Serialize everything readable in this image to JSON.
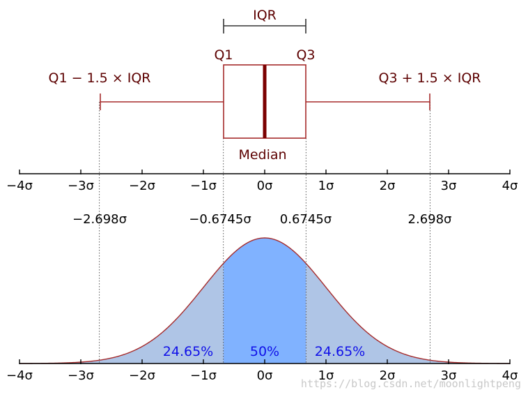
{
  "labels": {
    "iqr": "IQR",
    "q1": "Q1",
    "q3": "Q3",
    "median": "Median",
    "lower_fence": "Q1 − 1.5 × IQR",
    "upper_fence": "Q3 + 1.5 × IQR"
  },
  "axis_ticks": [
    "−4σ",
    "−3σ",
    "−2σ",
    "−1σ",
    "0σ",
    "1σ",
    "2σ",
    "3σ",
    "4σ"
  ],
  "axis_tick_values": [
    -4,
    -3,
    -2,
    -1,
    0,
    1,
    2,
    3,
    4
  ],
  "markers": [
    {
      "value": -2.698,
      "label": "−2.698σ"
    },
    {
      "value": -0.6745,
      "label": "−0.6745σ"
    },
    {
      "value": 0.6745,
      "label": "0.6745σ"
    },
    {
      "value": 2.698,
      "label": "2.698σ"
    }
  ],
  "regions": [
    {
      "label": "24.65%",
      "from": -2.698,
      "to": -0.6745
    },
    {
      "label": "50%",
      "from": -0.6745,
      "to": 0.6745
    },
    {
      "label": "24.65%",
      "from": 0.6745,
      "to": 2.698
    }
  ],
  "watermark": "https://blog.csdn.net/moonlightpeng",
  "colors": {
    "box": "#a52a2a",
    "median": "#7b0000",
    "text_dark": "#5c0000",
    "curve": "#a52a2a",
    "fill_center": "#80b2ff",
    "fill_sides": "#afc5e6",
    "percent_text": "#1010e8"
  }
}
